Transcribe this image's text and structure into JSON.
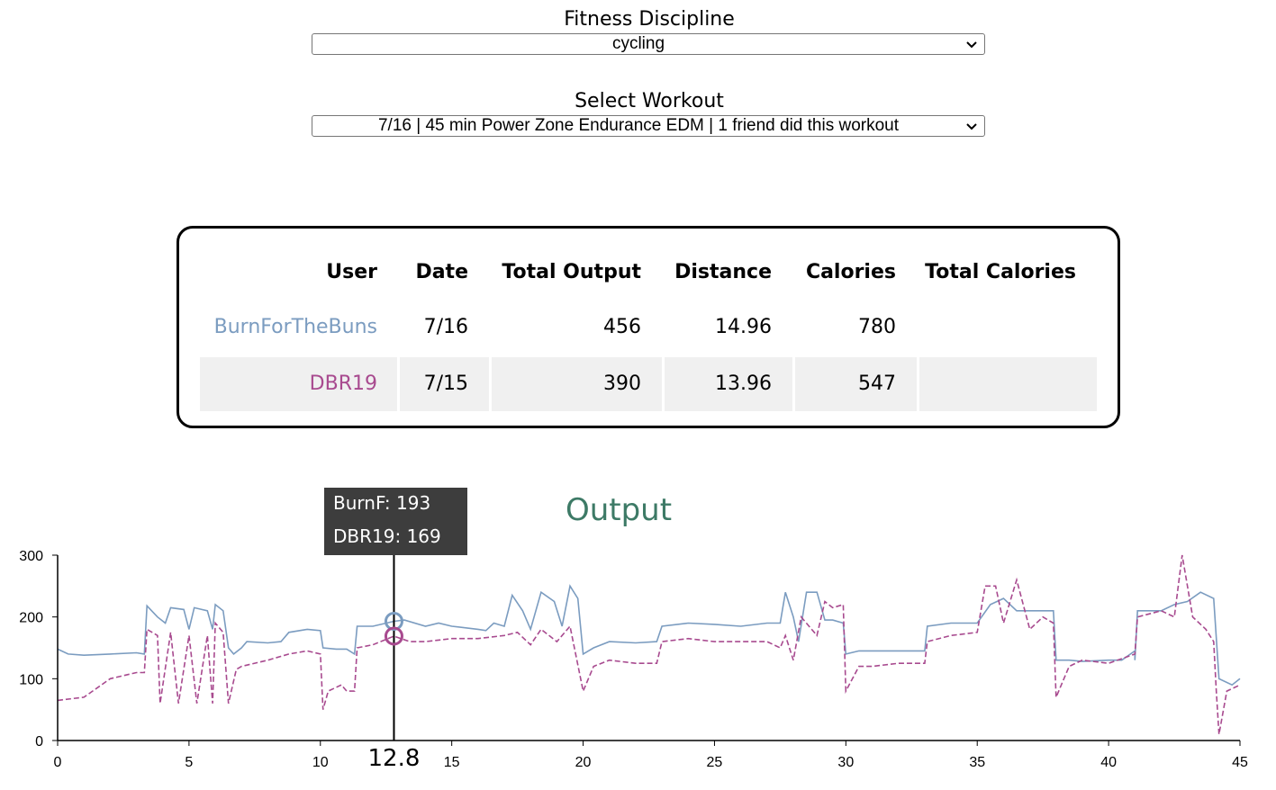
{
  "discipline": {
    "label": "Fitness Discipline",
    "value": "cycling"
  },
  "workout": {
    "label": "Select Workout",
    "value": "7/16 | 45 min Power Zone Endurance EDM | 1 friend did this workout"
  },
  "table": {
    "headers": [
      "User",
      "Date",
      "Total Output",
      "Distance",
      "Calories",
      "Total Calories"
    ],
    "rows": [
      {
        "user": "BurnForTheBuns",
        "date": "7/16",
        "output": "456",
        "distance": "14.96",
        "calories": "780",
        "total_calories": "",
        "color": "#7b9cc0"
      },
      {
        "user": "DBR19",
        "date": "7/15",
        "output": "390",
        "distance": "13.96",
        "calories": "547",
        "total_calories": "",
        "color": "#a84a8f"
      }
    ]
  },
  "tooltip": {
    "line1": "BurnF: 193",
    "line2": "DBR19: 169"
  },
  "chart_data": {
    "type": "line",
    "title": "Output",
    "title_color": "#3d7a66",
    "xlim": [
      0,
      45
    ],
    "ylim": [
      0,
      300
    ],
    "x_ticks": [
      0,
      5,
      10,
      15,
      20,
      25,
      30,
      35,
      40,
      45
    ],
    "y_ticks": [
      0,
      100,
      200,
      300
    ],
    "cursor": {
      "x": 12.8,
      "label": "12.8"
    },
    "series": [
      {
        "name": "BurnForTheBuns",
        "color": "#7b9cc0",
        "dash": false,
        "points": [
          [
            0,
            148
          ],
          [
            0.4,
            140
          ],
          [
            1,
            138
          ],
          [
            2,
            140
          ],
          [
            3,
            142
          ],
          [
            3.3,
            140
          ],
          [
            3.4,
            218
          ],
          [
            3.8,
            200
          ],
          [
            4.1,
            190
          ],
          [
            4.3,
            215
          ],
          [
            4.8,
            212
          ],
          [
            5,
            180
          ],
          [
            5.2,
            215
          ],
          [
            5.7,
            210
          ],
          [
            5.9,
            180
          ],
          [
            6,
            220
          ],
          [
            6.3,
            210
          ],
          [
            6.5,
            150
          ],
          [
            6.7,
            140
          ],
          [
            7,
            150
          ],
          [
            7.2,
            160
          ],
          [
            8,
            158
          ],
          [
            8.5,
            160
          ],
          [
            8.8,
            175
          ],
          [
            9.5,
            180
          ],
          [
            10,
            178
          ],
          [
            10.1,
            150
          ],
          [
            10.6,
            148
          ],
          [
            11,
            148
          ],
          [
            11.3,
            140
          ],
          [
            11.4,
            185
          ],
          [
            12,
            185
          ],
          [
            12.8,
            193
          ],
          [
            13.2,
            195
          ],
          [
            14,
            185
          ],
          [
            14.5,
            190
          ],
          [
            15,
            185
          ],
          [
            16,
            180
          ],
          [
            16.3,
            178
          ],
          [
            16.6,
            190
          ],
          [
            17,
            185
          ],
          [
            17.3,
            235
          ],
          [
            17.7,
            210
          ],
          [
            18,
            180
          ],
          [
            18.4,
            240
          ],
          [
            18.9,
            225
          ],
          [
            19.2,
            185
          ],
          [
            19.5,
            250
          ],
          [
            19.8,
            230
          ],
          [
            20,
            140
          ],
          [
            20.4,
            150
          ],
          [
            21,
            160
          ],
          [
            22,
            158
          ],
          [
            22.8,
            160
          ],
          [
            23,
            185
          ],
          [
            24,
            190
          ],
          [
            25,
            188
          ],
          [
            26,
            185
          ],
          [
            27,
            190
          ],
          [
            27.5,
            190
          ],
          [
            27.7,
            240
          ],
          [
            28,
            200
          ],
          [
            28.2,
            160
          ],
          [
            28.5,
            240
          ],
          [
            28.9,
            240
          ],
          [
            29.2,
            195
          ],
          [
            29.5,
            195
          ],
          [
            29.9,
            190
          ],
          [
            30,
            140
          ],
          [
            30.5,
            145
          ],
          [
            31,
            145
          ],
          [
            32,
            145
          ],
          [
            33,
            145
          ],
          [
            33.1,
            185
          ],
          [
            34,
            190
          ],
          [
            35,
            190
          ],
          [
            35.5,
            220
          ],
          [
            36,
            230
          ],
          [
            36.5,
            210
          ],
          [
            37,
            210
          ],
          [
            37.5,
            210
          ],
          [
            37.9,
            210
          ],
          [
            38,
            130
          ],
          [
            38.5,
            130
          ],
          [
            39,
            128
          ],
          [
            40,
            130
          ],
          [
            40.5,
            130
          ],
          [
            41,
            145
          ],
          [
            41,
            130
          ],
          [
            41.1,
            210
          ],
          [
            42,
            210
          ],
          [
            42.5,
            220
          ],
          [
            43,
            225
          ],
          [
            43.5,
            240
          ],
          [
            44,
            230
          ],
          [
            44.2,
            100
          ],
          [
            44.7,
            90
          ],
          [
            45,
            100
          ]
        ]
      },
      {
        "name": "DBR19",
        "color": "#a84a8f",
        "dash": true,
        "points": [
          [
            0,
            65
          ],
          [
            1,
            70
          ],
          [
            2,
            100
          ],
          [
            3,
            110
          ],
          [
            3.3,
            110
          ],
          [
            3.4,
            180
          ],
          [
            3.8,
            170
          ],
          [
            3.9,
            60
          ],
          [
            4.3,
            175
          ],
          [
            4.6,
            60
          ],
          [
            5,
            170
          ],
          [
            5.3,
            60
          ],
          [
            5.7,
            170
          ],
          [
            5.9,
            60
          ],
          [
            6,
            190
          ],
          [
            6.3,
            175
          ],
          [
            6.5,
            60
          ],
          [
            6.8,
            115
          ],
          [
            7,
            120
          ],
          [
            8,
            130
          ],
          [
            8.8,
            140
          ],
          [
            9.5,
            145
          ],
          [
            10,
            140
          ],
          [
            10.1,
            50
          ],
          [
            10.3,
            80
          ],
          [
            10.8,
            90
          ],
          [
            11,
            80
          ],
          [
            11.3,
            80
          ],
          [
            11.4,
            150
          ],
          [
            12,
            155
          ],
          [
            12.8,
            169
          ],
          [
            13.4,
            160
          ],
          [
            14,
            160
          ],
          [
            15,
            165
          ],
          [
            16,
            165
          ],
          [
            17,
            170
          ],
          [
            17.5,
            175
          ],
          [
            18,
            155
          ],
          [
            18.4,
            180
          ],
          [
            19,
            160
          ],
          [
            19.5,
            185
          ],
          [
            20,
            80
          ],
          [
            20.4,
            120
          ],
          [
            21,
            130
          ],
          [
            22,
            125
          ],
          [
            22.8,
            125
          ],
          [
            23,
            160
          ],
          [
            24,
            165
          ],
          [
            25,
            160
          ],
          [
            26,
            160
          ],
          [
            27,
            160
          ],
          [
            27.5,
            150
          ],
          [
            27.7,
            170
          ],
          [
            28,
            130
          ],
          [
            28.3,
            200
          ],
          [
            28.9,
            170
          ],
          [
            29.2,
            225
          ],
          [
            29.5,
            215
          ],
          [
            29.9,
            220
          ],
          [
            30,
            80
          ],
          [
            30.5,
            120
          ],
          [
            31,
            120
          ],
          [
            32,
            125
          ],
          [
            33,
            125
          ],
          [
            33.1,
            160
          ],
          [
            34,
            170
          ],
          [
            35,
            175
          ],
          [
            35.3,
            250
          ],
          [
            35.7,
            250
          ],
          [
            36,
            190
          ],
          [
            36.5,
            260
          ],
          [
            37,
            180
          ],
          [
            37.5,
            200
          ],
          [
            37.9,
            190
          ],
          [
            38,
            70
          ],
          [
            38.5,
            120
          ],
          [
            39,
            130
          ],
          [
            40,
            125
          ],
          [
            41,
            140
          ],
          [
            41.1,
            200
          ],
          [
            42,
            210
          ],
          [
            42.5,
            200
          ],
          [
            42.8,
            300
          ],
          [
            43.2,
            200
          ],
          [
            43.7,
            180
          ],
          [
            44,
            160
          ],
          [
            44.1,
            80
          ],
          [
            44.2,
            10
          ],
          [
            44.5,
            80
          ],
          [
            45,
            90
          ]
        ]
      }
    ]
  }
}
